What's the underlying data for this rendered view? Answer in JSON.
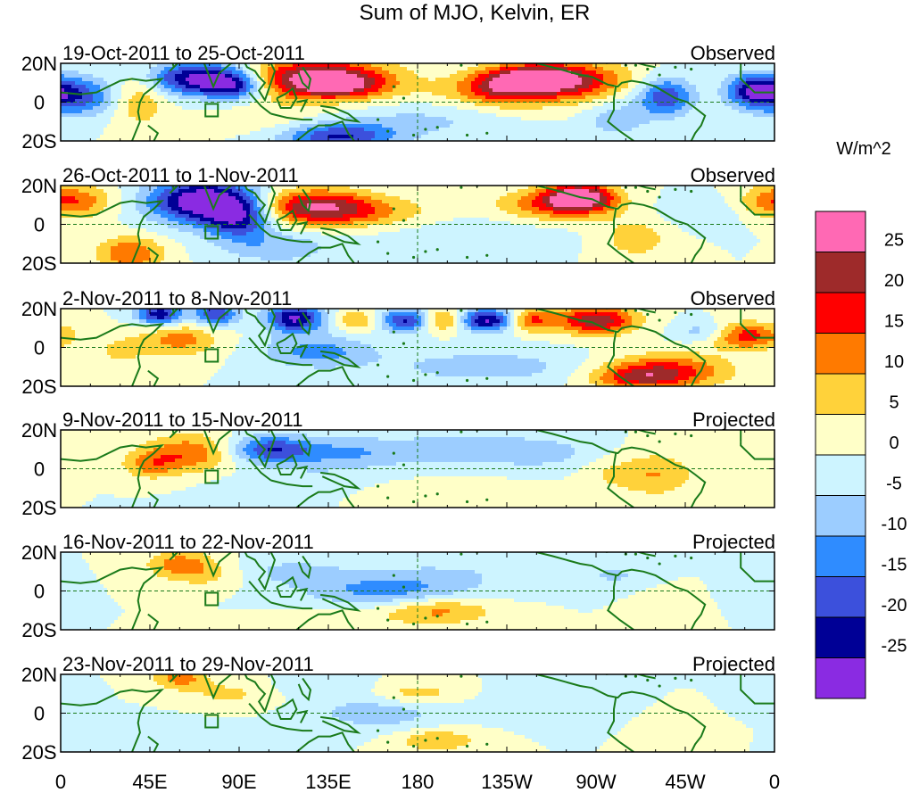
{
  "chart_data": {
    "type": "heatmap",
    "title": "Sum of MJO, Kelvin, ER",
    "units": "W/m^2",
    "x_axis": {
      "ticks": [
        "0",
        "45E",
        "90E",
        "135E",
        "180",
        "135W",
        "90W",
        "45W",
        "0"
      ],
      "tick_lon": [
        0,
        45,
        90,
        135,
        180,
        225,
        270,
        315,
        360
      ],
      "range": [
        0,
        360
      ]
    },
    "y_axis": {
      "ticks": [
        "20N",
        "0",
        "20S"
      ],
      "tick_lat": [
        20,
        0,
        -20
      ],
      "range": [
        -20,
        20
      ]
    },
    "colorbar": {
      "labels": [
        "25",
        "20",
        "15",
        "10",
        "5",
        "0",
        "-5",
        "-10",
        "-15",
        "-20",
        "-25"
      ],
      "colors": [
        "#ff69b4",
        "#9e2a2a",
        "#ff0000",
        "#ff7a00",
        "#ffd23a",
        "#ffffc8",
        "#cdf4ff",
        "#9ccdff",
        "#2f8cff",
        "#3c50dc",
        "#000096",
        "#8a2be2"
      ]
    },
    "colors": {
      "coast": "#1a7a1a",
      "ref_line": "#1a7a1a",
      "box": "#1a7a1a"
    },
    "panels": [
      {
        "date_label": "19-Oct-2011 to 25-Oct-2011",
        "status": "Observed",
        "blobs": [
          [
            130,
            12,
            25,
            7,
            30
          ],
          [
            142,
            8,
            14,
            4,
            10
          ],
          [
            240,
            12,
            18,
            5,
            24
          ],
          [
            255,
            10,
            25,
            8,
            16
          ],
          [
            222,
            6,
            14,
            6,
            12
          ],
          [
            70,
            12,
            18,
            6,
            -28
          ],
          [
            88,
            8,
            10,
            5,
            -18
          ],
          [
            8,
            3,
            14,
            7,
            -18
          ],
          [
            305,
            3,
            10,
            7,
            -20
          ],
          [
            350,
            6,
            10,
            6,
            -22
          ],
          [
            140,
            -18,
            20,
            5,
            -20
          ],
          [
            40,
            2,
            10,
            10,
            10
          ],
          [
            180,
            -10,
            30,
            6,
            -6
          ],
          [
            105,
            -8,
            20,
            6,
            4
          ],
          [
            280,
            -8,
            12,
            8,
            -8
          ],
          [
            200,
            6,
            20,
            5,
            4
          ]
        ]
      },
      {
        "date_label": "26-Oct-2011 to 1-Nov-2011",
        "status": "Observed",
        "blobs": [
          [
            70,
            12,
            18,
            8,
            -30
          ],
          [
            90,
            4,
            12,
            8,
            -22
          ],
          [
            128,
            10,
            20,
            6,
            18
          ],
          [
            145,
            6,
            30,
            6,
            12
          ],
          [
            262,
            14,
            12,
            5,
            28
          ],
          [
            248,
            10,
            20,
            6,
            14
          ],
          [
            10,
            12,
            12,
            6,
            12
          ],
          [
            35,
            -15,
            12,
            6,
            15
          ],
          [
            290,
            -7,
            14,
            8,
            8
          ],
          [
            205,
            -5,
            40,
            8,
            -4
          ],
          [
            355,
            12,
            10,
            6,
            8
          ],
          [
            110,
            -12,
            20,
            6,
            -8
          ],
          [
            320,
            5,
            16,
            6,
            -4
          ]
        ]
      },
      {
        "date_label": "2-Nov-2011 to 8-Nov-2011",
        "status": "Observed",
        "blobs": [
          [
            50,
            17,
            8,
            4,
            -24
          ],
          [
            78,
            17,
            8,
            4,
            -20
          ],
          [
            118,
            15,
            10,
            5,
            -26
          ],
          [
            175,
            14,
            10,
            4,
            -22
          ],
          [
            215,
            14,
            10,
            4,
            -26
          ],
          [
            192,
            14,
            8,
            4,
            16
          ],
          [
            237,
            14,
            8,
            4,
            16
          ],
          [
            270,
            14,
            14,
            5,
            24
          ],
          [
            345,
            6,
            14,
            5,
            18
          ],
          [
            305,
            -12,
            22,
            6,
            18
          ],
          [
            290,
            -16,
            16,
            4,
            12
          ],
          [
            60,
            4,
            14,
            6,
            12
          ],
          [
            130,
            -2,
            20,
            6,
            -12
          ],
          [
            215,
            -10,
            36,
            6,
            -8
          ],
          [
            30,
            -2,
            10,
            6,
            6
          ],
          [
            150,
            14,
            8,
            4,
            10
          ],
          [
            325,
            8,
            10,
            4,
            -10
          ]
        ]
      },
      {
        "date_label": "9-Nov-2011 to 15-Nov-2011",
        "status": "Projected",
        "blobs": [
          [
            65,
            8,
            16,
            7,
            14
          ],
          [
            45,
            2,
            10,
            5,
            10
          ],
          [
            105,
            10,
            14,
            5,
            -18
          ],
          [
            140,
            8,
            22,
            6,
            -10
          ],
          [
            200,
            10,
            28,
            6,
            -8
          ],
          [
            245,
            8,
            20,
            6,
            -6
          ],
          [
            300,
            -3,
            14,
            8,
            10
          ],
          [
            275,
            -2,
            10,
            6,
            4
          ],
          [
            120,
            -8,
            30,
            6,
            -4
          ],
          [
            350,
            3,
            12,
            6,
            4
          ],
          [
            185,
            -12,
            40,
            5,
            3
          ]
        ]
      },
      {
        "date_label": "16-Nov-2011 to 22-Nov-2011",
        "status": "Projected",
        "blobs": [
          [
            60,
            14,
            12,
            5,
            12
          ],
          [
            75,
            8,
            14,
            5,
            6
          ],
          [
            190,
            -10,
            20,
            5,
            12
          ],
          [
            165,
            0,
            30,
            6,
            -12
          ],
          [
            115,
            10,
            20,
            5,
            -6
          ],
          [
            200,
            10,
            40,
            6,
            -4
          ],
          [
            280,
            8,
            14,
            5,
            -5
          ],
          [
            310,
            -6,
            12,
            6,
            4
          ],
          [
            345,
            0,
            10,
            6,
            -5
          ],
          [
            140,
            -15,
            24,
            5,
            3
          ]
        ]
      },
      {
        "date_label": "23-Nov-2011 to 29-Nov-2011",
        "status": "Projected",
        "blobs": [
          [
            60,
            18,
            10,
            4,
            12
          ],
          [
            85,
            10,
            16,
            5,
            6
          ],
          [
            180,
            10,
            14,
            4,
            8
          ],
          [
            160,
            0,
            24,
            6,
            -8
          ],
          [
            255,
            5,
            22,
            6,
            -5
          ],
          [
            190,
            -14,
            14,
            4,
            10
          ],
          [
            45,
            -10,
            20,
            5,
            -4
          ],
          [
            130,
            14,
            16,
            4,
            -4
          ],
          [
            315,
            -4,
            14,
            6,
            4
          ],
          [
            350,
            5,
            12,
            5,
            -4
          ]
        ]
      }
    ],
    "coastline_segments": [
      [
        [
          0,
          5
        ],
        [
          10,
          4
        ],
        [
          18,
          5
        ],
        [
          24,
          8
        ],
        [
          30,
          11
        ],
        [
          36,
          12
        ],
        [
          43,
          11
        ],
        [
          51,
          12
        ],
        [
          47,
          8
        ],
        [
          42,
          4
        ],
        [
          40,
          0
        ],
        [
          39,
          -5
        ],
        [
          40,
          -10
        ],
        [
          38,
          -15
        ],
        [
          36,
          -20
        ]
      ],
      [
        [
          44,
          -12
        ],
        [
          49,
          -16
        ],
        [
          47,
          -20
        ]
      ],
      [
        [
          44,
          20
        ],
        [
          56,
          22
        ],
        [
          57,
          18
        ],
        [
          55,
          16
        ],
        [
          60,
          21
        ]
      ],
      [
        [
          67,
          24
        ],
        [
          72,
          21
        ],
        [
          77,
          8
        ],
        [
          80,
          15
        ],
        [
          86,
          20
        ],
        [
          92,
          22
        ],
        [
          94,
          18
        ],
        [
          98,
          16
        ],
        [
          100,
          13
        ],
        [
          103,
          10
        ],
        [
          100,
          6
        ],
        [
          103,
          1
        ],
        [
          106,
          10
        ],
        [
          108,
          16
        ],
        [
          106,
          20
        ],
        [
          110,
          21
        ],
        [
          117,
          23
        ],
        [
          121,
          25
        ]
      ],
      [
        [
          95,
          5
        ],
        [
          101,
          -2
        ],
        [
          106,
          -6
        ]
      ],
      [
        [
          106,
          -6
        ],
        [
          114,
          -8
        ],
        [
          122,
          -9
        ],
        [
          127,
          -9
        ]
      ],
      [
        [
          109,
          2
        ],
        [
          113,
          4
        ],
        [
          117,
          7
        ],
        [
          119,
          2
        ],
        [
          116,
          -3
        ],
        [
          111,
          -3
        ],
        [
          109,
          2
        ]
      ],
      [
        [
          119,
          0
        ],
        [
          124,
          1
        ],
        [
          121,
          -5
        ]
      ],
      [
        [
          122,
          18
        ],
        [
          126,
          12
        ],
        [
          125,
          7
        ],
        [
          122,
          10
        ],
        [
          120,
          15
        ]
      ],
      [
        [
          131,
          -2
        ],
        [
          138,
          -3
        ],
        [
          145,
          -6
        ],
        [
          150,
          -10
        ],
        [
          143,
          -9
        ],
        [
          132,
          -4
        ]
      ],
      [
        [
          119,
          -20
        ],
        [
          125,
          -15
        ],
        [
          130,
          -12
        ],
        [
          136,
          -12
        ],
        [
          142,
          -10
        ],
        [
          145,
          -16
        ],
        [
          148,
          -20
        ]
      ],
      [
        [
          240,
          20
        ],
        [
          248,
          18
        ],
        [
          255,
          16
        ],
        [
          262,
          14
        ],
        [
          268,
          13
        ],
        [
          276,
          9
        ],
        [
          281,
          8
        ],
        [
          283,
          10
        ],
        [
          288,
          11
        ],
        [
          294,
          10
        ],
        [
          300,
          8
        ],
        [
          305,
          5
        ],
        [
          310,
          2
        ],
        [
          316,
          0
        ],
        [
          320,
          -3
        ],
        [
          325,
          -7
        ],
        [
          323,
          -12
        ],
        [
          320,
          -16
        ],
        [
          318,
          -20
        ]
      ],
      [
        [
          280,
          8
        ],
        [
          279,
          2
        ],
        [
          279,
          -4
        ],
        [
          276,
          -10
        ],
        [
          282,
          -15
        ],
        [
          289,
          -20
        ]
      ],
      [
        [
          275,
          20
        ],
        [
          285,
          22
        ],
        [
          295,
          19
        ],
        [
          300,
          18
        ]
      ],
      [
        [
          343,
          14
        ],
        [
          343,
          12
        ],
        [
          345,
          10
        ],
        [
          350,
          5
        ],
        [
          355,
          5
        ],
        [
          360,
          5
        ]
      ],
      [
        [
          343,
          20
        ],
        [
          343,
          14
        ]
      ]
    ],
    "islands": [
      [
        168,
        8
      ],
      [
        173,
        2
      ],
      [
        178,
        -17
      ],
      [
        184,
        -14
      ],
      [
        160,
        -9
      ],
      [
        165,
        -15
      ],
      [
        190,
        -13
      ],
      [
        205,
        -17
      ],
      [
        215,
        -16
      ],
      [
        210,
        20
      ],
      [
        202,
        19
      ],
      [
        296,
        17
      ],
      [
        302,
        14
      ],
      [
        310,
        18
      ],
      [
        318,
        17
      ],
      [
        285,
        19
      ],
      [
        290,
        19
      ]
    ]
  }
}
